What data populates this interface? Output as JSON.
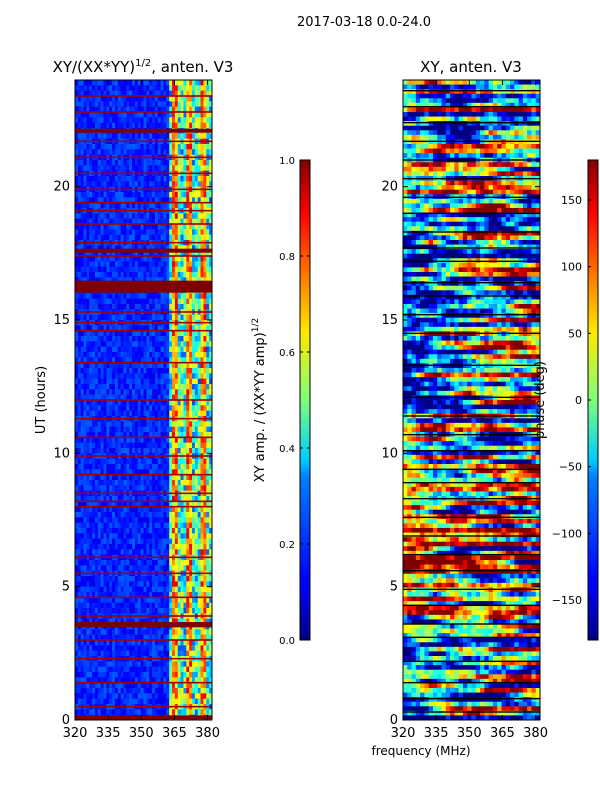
{
  "suptitle": "2017-03-18 0.0-24.0",
  "shared_xlabel": "frequency (MHz)",
  "chart_data": [
    {
      "type": "heatmap",
      "title": "XY/(XX*YY)^1/2, anten. V3",
      "title_main": "XY/(XX*YY)",
      "title_exp": "1/2",
      "title_suffix": ", anten. V3",
      "xlabel": "frequency (MHz)",
      "ylabel": "UT (hours)",
      "xlim": [
        320,
        382
      ],
      "ylim": [
        0,
        24
      ],
      "xticks": [
        320,
        335,
        350,
        365,
        380
      ],
      "yticks": [
        0,
        5,
        10,
        15,
        20
      ],
      "colorbar": {
        "label": "XY amp. / (XX*YY amp)^1/2",
        "label_main": "XY amp. / (XX*YY amp)",
        "label_exp": "1/2",
        "range": [
          0.0,
          1.0
        ],
        "ticks": [
          "0.0",
          "0.2",
          "0.4",
          "0.6",
          "0.8",
          "1.0"
        ],
        "colormap": "jet"
      },
      "band_edges_mhz": [
        362,
        382
      ],
      "solid_rows_hours": [
        0.1,
        3.55,
        3.6,
        16.1,
        16.2,
        16.3,
        16.4,
        17.6,
        22.1
      ],
      "flag_rows_hours": [
        0.5,
        1.4,
        2.3,
        3.0,
        3.9,
        4.6,
        5.5,
        6.1,
        8.0,
        8.2,
        8.5,
        9.2,
        9.9,
        10.6,
        11.3,
        12.0,
        13.4,
        14.6,
        14.9,
        15.3,
        17.4,
        17.9,
        18.6,
        19.1,
        19.4,
        19.9,
        20.5,
        21.1,
        21.7,
        22.8,
        23.4
      ]
    },
    {
      "type": "heatmap",
      "title": "XY, anten. V3",
      "xlabel": "frequency (MHz)",
      "ylabel": "",
      "xlim": [
        320,
        382
      ],
      "ylim": [
        0,
        24
      ],
      "xticks": [
        320,
        335,
        350,
        365,
        380
      ],
      "yticks": [
        0,
        5,
        10,
        15,
        20
      ],
      "colorbar": {
        "label": "phase (deg)",
        "range": [
          -180,
          180
        ],
        "ticks": [
          "−150",
          "−100",
          "−50",
          "0",
          "50",
          "100",
          "150"
        ],
        "tick_values": [
          -150,
          -100,
          -50,
          0,
          50,
          100,
          150
        ],
        "colormap": "jet"
      },
      "flag_rows_hours": [
        0.3,
        0.8,
        1.4,
        2.2,
        3.1,
        3.6,
        4.3,
        4.9,
        5.6,
        6.2,
        6.9,
        7.6,
        8.3,
        8.9,
        9.4,
        10.1,
        10.7,
        11.4,
        12.1,
        13.3,
        14.5,
        15.2,
        15.9,
        16.4,
        17.2,
        17.7,
        18.3,
        19.0,
        19.6,
        20.3,
        21.0,
        21.7,
        22.4,
        23.0,
        23.6
      ]
    }
  ]
}
